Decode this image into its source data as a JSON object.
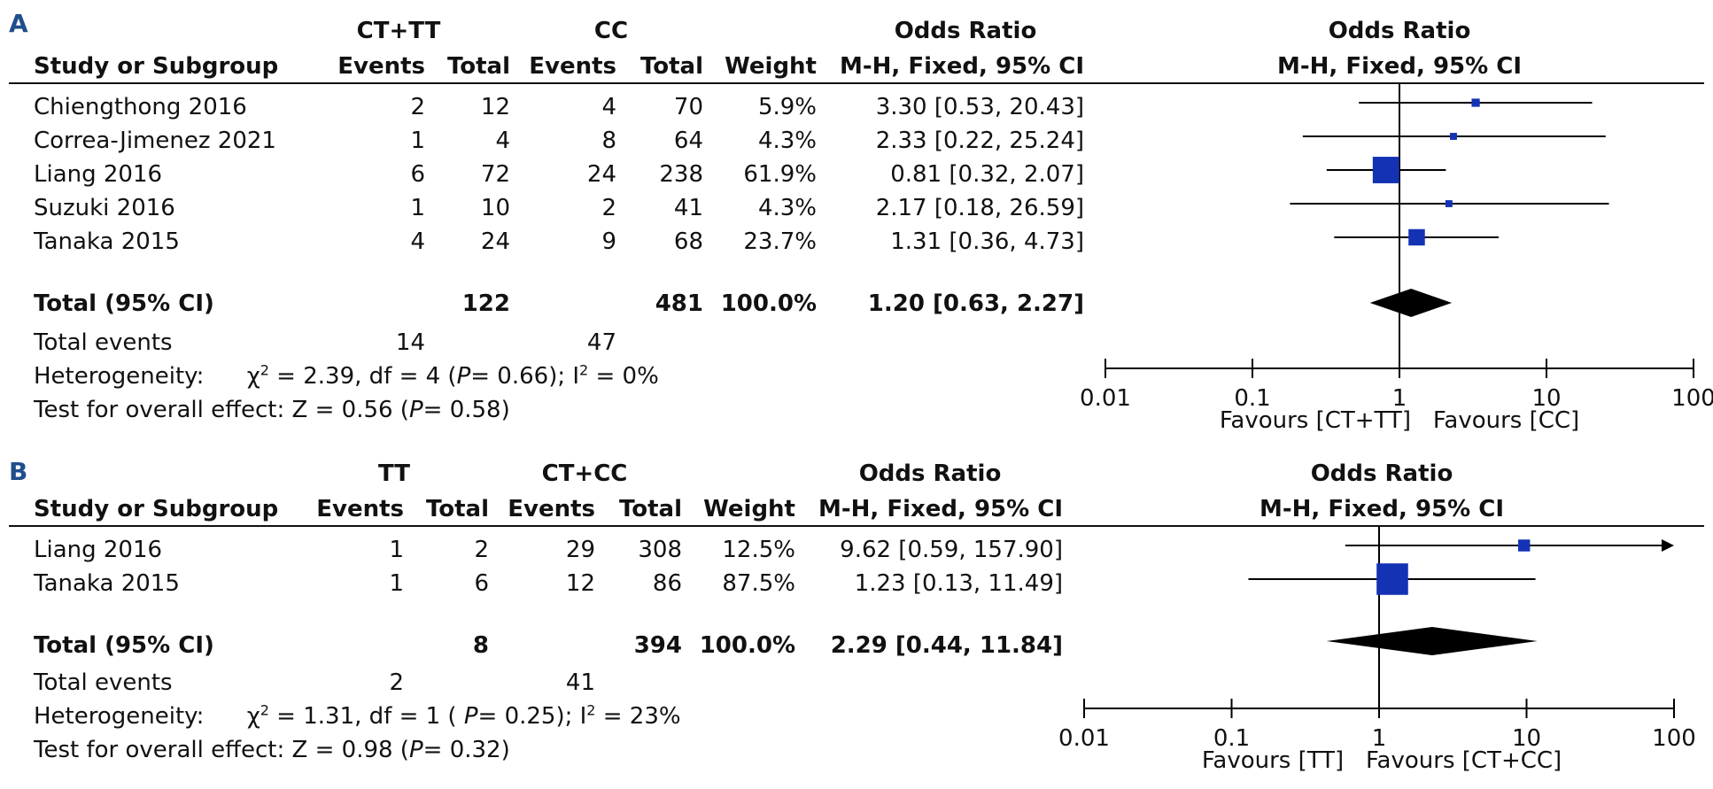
{
  "chart_data": [
    {
      "type": "forest",
      "panel_label": "A",
      "group1_header": "CT+TT",
      "group2_header": "CC",
      "columns": {
        "study": "Study or Subgroup",
        "events": "Events",
        "total": "Total",
        "weight": "Weight",
        "or_title": "Odds Ratio",
        "or_method": "M-H, Fixed, 95% CI"
      },
      "studies": [
        {
          "name": "Chiengthong 2016",
          "g1_events": "2",
          "g1_total": "12",
          "g2_events": "4",
          "g2_total": "70",
          "weight": "5.9%",
          "or_text": "3.30 [0.53, 20.43]",
          "or": 3.3,
          "lo": 0.53,
          "hi": 20.43,
          "w": 5.9
        },
        {
          "name": "Correa-Jimenez 2021",
          "g1_events": "1",
          "g1_total": "4",
          "g2_events": "8",
          "g2_total": "64",
          "weight": "4.3%",
          "or_text": "2.33 [0.22, 25.24]",
          "or": 2.33,
          "lo": 0.22,
          "hi": 25.24,
          "w": 4.3
        },
        {
          "name": "Liang 2016",
          "g1_events": "6",
          "g1_total": "72",
          "g2_events": "24",
          "g2_total": "238",
          "weight": "61.9%",
          "or_text": "0.81 [0.32, 2.07]",
          "or": 0.81,
          "lo": 0.32,
          "hi": 2.07,
          "w": 61.9
        },
        {
          "name": "Suzuki 2016",
          "g1_events": "1",
          "g1_total": "10",
          "g2_events": "2",
          "g2_total": "41",
          "weight": "4.3%",
          "or_text": "2.17 [0.18, 26.59]",
          "or": 2.17,
          "lo": 0.18,
          "hi": 26.59,
          "w": 4.3
        },
        {
          "name": "Tanaka 2015",
          "g1_events": "4",
          "g1_total": "24",
          "g2_events": "9",
          "g2_total": "68",
          "weight": "23.7%",
          "or_text": "1.31 [0.36, 4.73]",
          "or": 1.31,
          "lo": 0.36,
          "hi": 4.73,
          "w": 23.7
        }
      ],
      "total": {
        "label": "Total (95% CI)",
        "g1_total": "122",
        "g2_total": "481",
        "weight": "100.0%",
        "or_text": "1.20 [0.63, 2.27]",
        "or": 1.2,
        "lo": 0.63,
        "hi": 2.27
      },
      "total_events": {
        "label": "Total events",
        "g1": "14",
        "g2": "47"
      },
      "heterogeneity": {
        "label": "Heterogeneity:",
        "chi": "χ",
        "chi_sup": "2",
        "stat": " = 2.39, df = 4 (",
        "p": "P",
        "p_val": "= 0.66); I",
        "i_sup": "2",
        "i_val": " = 0%"
      },
      "overall": {
        "prefix": "Test for overall effect: Z = 0.56 (",
        "p": "P",
        "suffix": "= 0.58)"
      },
      "axis": {
        "ticks": [
          0.01,
          0.1,
          1,
          10,
          100
        ],
        "tick_labels": [
          "0.01",
          "0.1",
          "1",
          "10",
          "100"
        ],
        "xmin": 0.01,
        "xmax": 100,
        "scale": "log"
      },
      "favours_left": "Favours [CT+TT]",
      "favours_right": "Favours [CC]"
    },
    {
      "type": "forest",
      "panel_label": "B",
      "group1_header": "TT",
      "group2_header": "CT+CC",
      "columns": {
        "study": "Study or Subgroup",
        "events": "Events",
        "total": "Total",
        "weight": "Weight",
        "or_title": "Odds Ratio",
        "or_method": "M-H, Fixed, 95% CI"
      },
      "studies": [
        {
          "name": "Liang 2016",
          "g1_events": "1",
          "g1_total": "2",
          "g2_events": "29",
          "g2_total": "308",
          "weight": "12.5%",
          "or_text": "9.62 [0.59, 157.90]",
          "or": 9.62,
          "lo": 0.59,
          "hi": 157.9,
          "w": 12.5
        },
        {
          "name": "Tanaka 2015",
          "g1_events": "1",
          "g1_total": "6",
          "g2_events": "12",
          "g2_total": "86",
          "weight": "87.5%",
          "or_text": "1.23 [0.13, 11.49]",
          "or": 1.23,
          "lo": 0.13,
          "hi": 11.49,
          "w": 87.5
        }
      ],
      "total": {
        "label": "Total (95% CI)",
        "g1_total": "8",
        "g2_total": "394",
        "weight": "100.0%",
        "or_text": "2.29 [0.44, 11.84]",
        "or": 2.29,
        "lo": 0.44,
        "hi": 11.84
      },
      "total_events": {
        "label": "Total events",
        "g1": "2",
        "g2": "41"
      },
      "heterogeneity": {
        "label": "Heterogeneity:",
        "chi": "χ",
        "chi_sup": "2",
        "stat": " = 1.31, df = 1 ( ",
        "p": "P",
        "p_val": "= 0.25); I",
        "i_sup": "2",
        "i_val": " = 23%"
      },
      "overall": {
        "prefix": "Test for overall effect: Z = 0.98 (",
        "p": "P",
        "suffix": "= 0.32)"
      },
      "axis": {
        "ticks": [
          0.01,
          0.1,
          1,
          10,
          100
        ],
        "tick_labels": [
          "0.01",
          "0.1",
          "1",
          "10",
          "100"
        ],
        "xmin": 0.01,
        "xmax": 100,
        "scale": "log"
      },
      "favours_left": "Favours [TT]",
      "favours_right": "Favours [CT+CC]"
    }
  ],
  "colors": {
    "square": "#1432b4",
    "diamond": "#000000",
    "label": "#1f4e8c"
  }
}
